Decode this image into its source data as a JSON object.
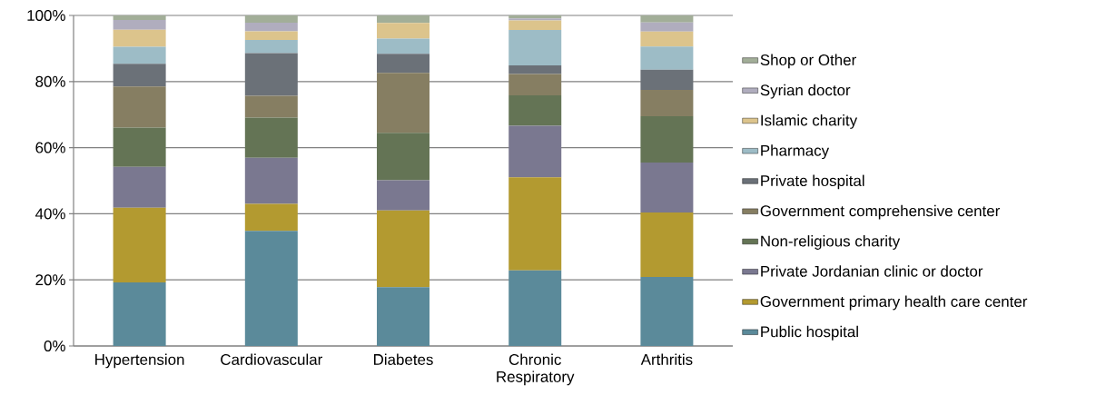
{
  "chart_data": {
    "type": "bar",
    "stacked": true,
    "categories": [
      "Hypertension",
      "Cardiovascular",
      "Diabetes",
      "Chronic Respiratory",
      "Arthritis"
    ],
    "ylim": [
      0,
      100
    ],
    "yticks": [
      {
        "value": 0,
        "label": "0%"
      },
      {
        "value": 20,
        "label": "20%"
      },
      {
        "value": 40,
        "label": "40%"
      },
      {
        "value": 60,
        "label": "60%"
      },
      {
        "value": 80,
        "label": "80%"
      },
      {
        "value": 100,
        "label": "100%"
      }
    ],
    "grid": "y",
    "legend": "right",
    "series": [
      {
        "name": "Public hospital",
        "color": "#5b8a9a",
        "values": [
          19.2,
          34.8,
          17.8,
          22.9,
          20.9
        ]
      },
      {
        "name": "Government primary health care center",
        "color": "#b39a30",
        "values": [
          22.6,
          8.2,
          23.2,
          28.1,
          19.5
        ]
      },
      {
        "name": "Private Jordanian clinic or doctor",
        "color": "#7a7890",
        "values": [
          12.4,
          13.9,
          9.1,
          15.6,
          15.1
        ]
      },
      {
        "name": "Non-religious charity",
        "color": "#647455",
        "values": [
          11.9,
          12.2,
          14.4,
          9.2,
          14.0
        ]
      },
      {
        "name": "Government comprehensive center",
        "color": "#867e62",
        "values": [
          12.4,
          6.6,
          18.1,
          6.5,
          8.0
        ]
      },
      {
        "name": "Private hospital",
        "color": "#6b7178",
        "values": [
          6.9,
          12.9,
          5.8,
          2.6,
          6.1
        ]
      },
      {
        "name": "Pharmacy",
        "color": "#9dbcc6",
        "values": [
          5.1,
          4.0,
          4.6,
          10.7,
          7.0
        ]
      },
      {
        "name": "Islamic charity",
        "color": "#dcc48c",
        "values": [
          5.2,
          2.6,
          4.7,
          2.9,
          4.5
        ]
      },
      {
        "name": "Syrian doctor",
        "color": "#b0adbe",
        "values": [
          2.9,
          2.6,
          0,
          0.6,
          2.8
        ]
      },
      {
        "name": "Shop or Other",
        "color": "#a2ae98",
        "values": [
          1.4,
          2.2,
          2.3,
          0.9,
          2.1
        ]
      }
    ]
  }
}
